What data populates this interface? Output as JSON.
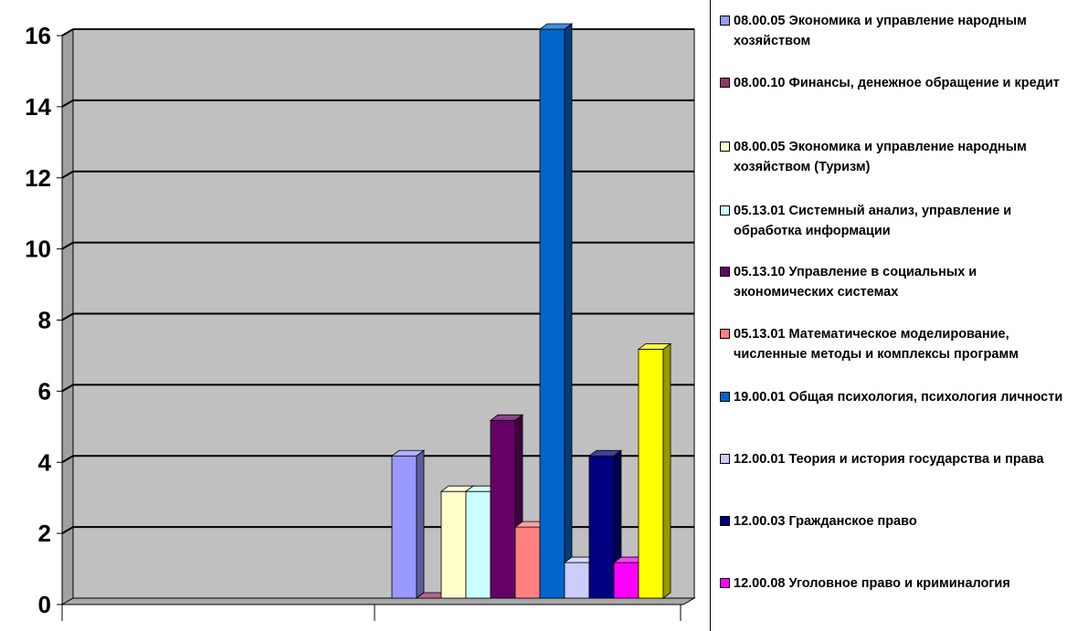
{
  "chart_data": {
    "type": "bar",
    "title": "",
    "xlabel": "",
    "ylabel": "",
    "ylim": [
      0,
      16
    ],
    "yticks": [
      "0",
      "2",
      "4",
      "6",
      "8",
      "10",
      "12",
      "14",
      "16"
    ],
    "grid": true,
    "three_d": true,
    "legend_position": "right",
    "series": [
      {
        "name": "08.00.05 Экономика и управление народным хозяйством",
        "value": 4,
        "color": "#9999ff"
      },
      {
        "name": "08.00.10 Финансы, денежное обращение и кредит",
        "value": 0,
        "color": "#993366"
      },
      {
        "name": "08.00.05 Экономика и управление народным хозяйством (Туризм)",
        "value": 3,
        "color": "#ffffcc"
      },
      {
        "name": "05.13.01 Системный анализ, управление и обработка информации",
        "value": 3,
        "color": "#ccffff"
      },
      {
        "name": "05.13.10  Управление в социальных и экономических системах",
        "value": 5,
        "color": "#660066"
      },
      {
        "name": "05.13.01 Математическое моделирование, численные методы и комплексы программ",
        "value": 2,
        "color": "#ff8080"
      },
      {
        "name": "19.00.01 Общая психология, психология личности",
        "value": 16,
        "color": "#0066cc"
      },
      {
        "name": "12.00.01 Теория и история государства и права",
        "value": 1,
        "color": "#ccccff"
      },
      {
        "name": "12.00.03 Гражданское право",
        "value": 4,
        "color": "#000080"
      },
      {
        "name": "12.00.08 Уголовное право и криминалогия",
        "value": 1,
        "color": "#ff00ff"
      },
      {
        "value": 7,
        "color": "#ffff00"
      }
    ]
  },
  "colors": {
    "plot_back": "#c0c0c0",
    "plot_wall_side": "#a0a0a0",
    "floor": "#a8a8a8",
    "grid": "#000000"
  }
}
